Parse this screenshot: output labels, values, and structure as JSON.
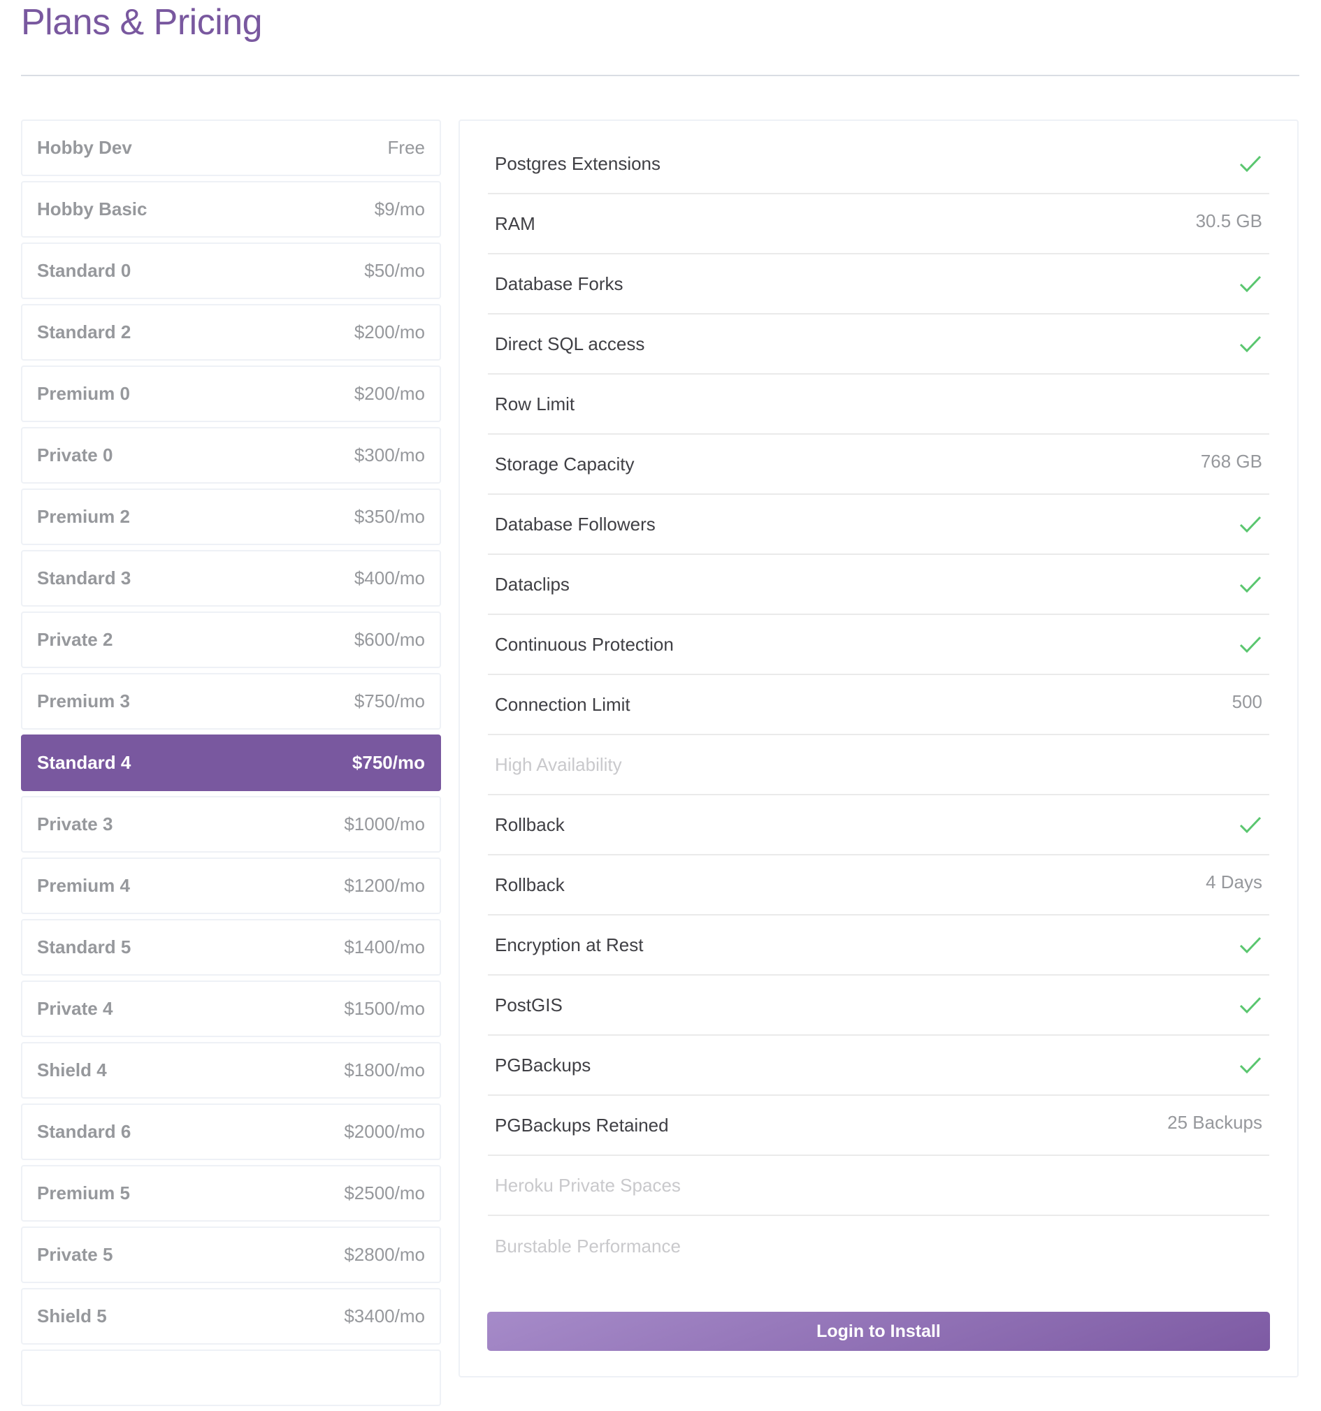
{
  "page": {
    "title": "Plans & Pricing"
  },
  "colors": {
    "accent": "#79589f",
    "check": "#5ac66f"
  },
  "plans": [
    {
      "name": "Hobby Dev",
      "price": "Free"
    },
    {
      "name": "Hobby Basic",
      "price": "$9/mo"
    },
    {
      "name": "Standard 0",
      "price": "$50/mo"
    },
    {
      "name": "Standard 2",
      "price": "$200/mo"
    },
    {
      "name": "Premium 0",
      "price": "$200/mo"
    },
    {
      "name": "Private 0",
      "price": "$300/mo"
    },
    {
      "name": "Premium 2",
      "price": "$350/mo"
    },
    {
      "name": "Standard 3",
      "price": "$400/mo"
    },
    {
      "name": "Private 2",
      "price": "$600/mo"
    },
    {
      "name": "Premium 3",
      "price": "$750/mo"
    },
    {
      "name": "Standard 4",
      "price": "$750/mo",
      "selected": true
    },
    {
      "name": "Private 3",
      "price": "$1000/mo"
    },
    {
      "name": "Premium 4",
      "price": "$1200/mo"
    },
    {
      "name": "Standard 5",
      "price": "$1400/mo"
    },
    {
      "name": "Private 4",
      "price": "$1500/mo"
    },
    {
      "name": "Shield 4",
      "price": "$1800/mo"
    },
    {
      "name": "Standard 6",
      "price": "$2000/mo"
    },
    {
      "name": "Premium 5",
      "price": "$2500/mo"
    },
    {
      "name": "Private 5",
      "price": "$2800/mo"
    },
    {
      "name": "Shield 5",
      "price": "$3400/mo"
    },
    {
      "name": "",
      "price": ""
    }
  ],
  "features": [
    {
      "label": "Postgres Extensions",
      "check": true
    },
    {
      "label": "RAM",
      "value": "30.5 GB"
    },
    {
      "label": "Database Forks",
      "check": true
    },
    {
      "label": "Direct SQL access",
      "check": true
    },
    {
      "label": "Row Limit"
    },
    {
      "label": "Storage Capacity",
      "value": "768 GB"
    },
    {
      "label": "Database Followers",
      "check": true
    },
    {
      "label": "Dataclips",
      "check": true
    },
    {
      "label": "Continuous Protection",
      "check": true
    },
    {
      "label": "Connection Limit",
      "value": "500"
    },
    {
      "label": "High Availability",
      "disabled": true
    },
    {
      "label": "Rollback",
      "check": true
    },
    {
      "label": "Rollback",
      "value": "4 Days"
    },
    {
      "label": "Encryption at Rest",
      "check": true
    },
    {
      "label": "PostGIS",
      "check": true
    },
    {
      "label": "PGBackups",
      "check": true
    },
    {
      "label": "PGBackups Retained",
      "value": "25 Backups"
    },
    {
      "label": "Heroku Private Spaces",
      "disabled": true
    },
    {
      "label": "Burstable Performance",
      "disabled": true
    }
  ],
  "install_button": "Login to Install"
}
